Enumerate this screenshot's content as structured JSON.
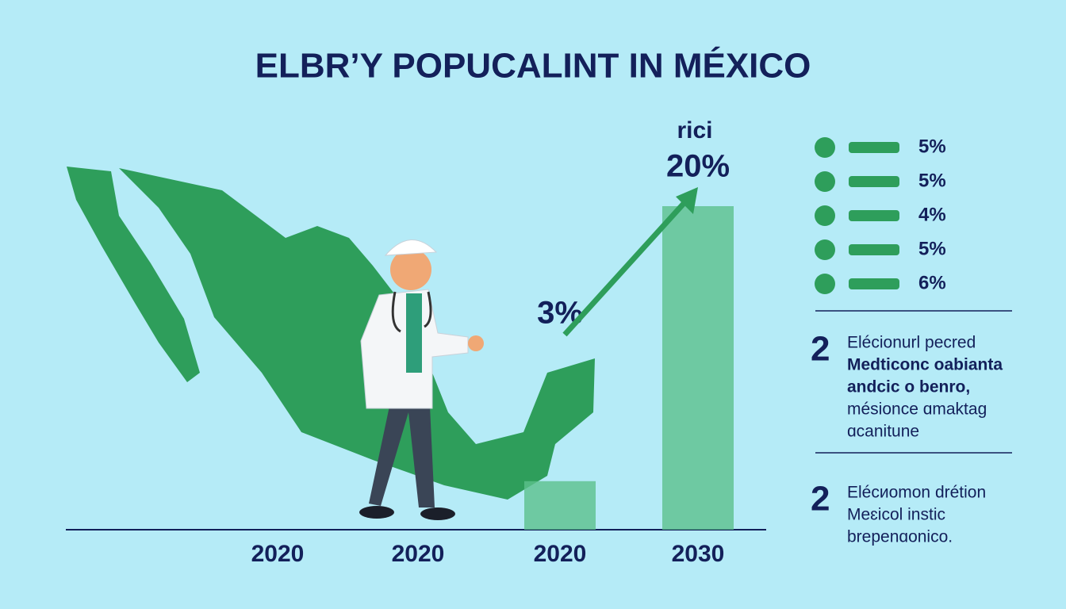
{
  "chart_data": {
    "type": "bar",
    "title": "ELBR’Y POPUCALINT IN MÉXICO",
    "categories": [
      "2020",
      "2020",
      "2020",
      "2030"
    ],
    "values": [
      null,
      null,
      3,
      20
    ],
    "value_labels": [
      null,
      null,
      "3%",
      "20%"
    ],
    "annotation": "rici",
    "color": "#5cc08c",
    "ylim": [
      0,
      20
    ]
  },
  "side_panel": {
    "items": [
      "5%",
      "5%",
      "4%",
      "5%",
      "6%"
    ],
    "notes": [
      {
        "number": "2",
        "lines": [
          "Elécionurl pecred",
          "Medticonc oabianta",
          "andcic o benro,",
          "mésionce ɑmaktag",
          "ɑcanitune"
        ]
      },
      {
        "number": "2",
        "lines": [
          "Elécиomon drétion",
          "Meɛicol instic",
          "brepenɑonico."
        ]
      }
    ]
  }
}
